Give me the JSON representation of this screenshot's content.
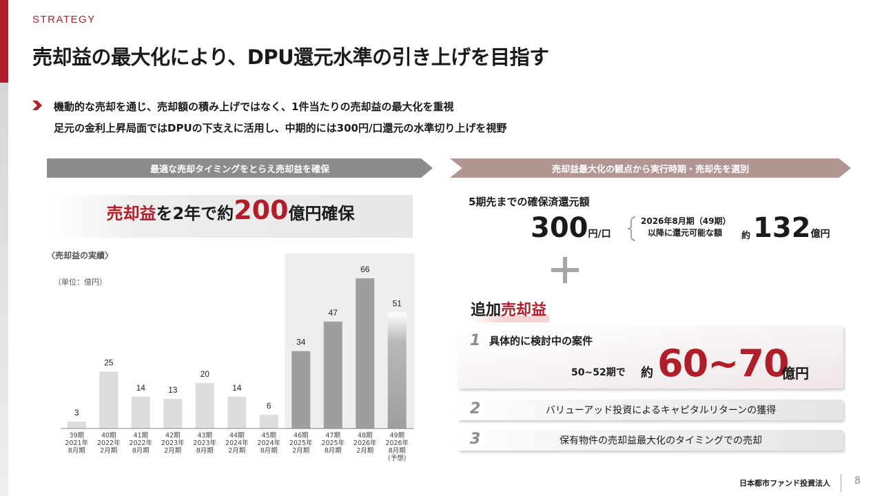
{
  "header": {
    "section": "STRATEGY",
    "title": "売却益の最大化により、DPU還元水準の引き上げを目指す"
  },
  "lead": {
    "line1": "機動的な売却を通じ、売却額の積み上げではなく、1件当たりの売却益の最大化を重視",
    "line2": "足元の金利上昇局面ではDPUの下支えに活用し、中期的には300円/口還元の水準切り上げを視野"
  },
  "left_panel": {
    "banner": "最適な売却タイミングをとらえ売却益を確保",
    "highlight": {
      "part1": "売却益",
      "part2": "を2年で約",
      "amount": "200",
      "part3": "億円確保"
    },
    "chart_caption": "〈売却益の実績〉",
    "unit": "（単位：億円）"
  },
  "chart_data": {
    "type": "bar",
    "categories": [
      [
        "39期",
        "2021年",
        "8月期"
      ],
      [
        "40期",
        "2022年",
        "2月期"
      ],
      [
        "41期",
        "2022年",
        "8月期"
      ],
      [
        "42期",
        "2023年",
        "2月期"
      ],
      [
        "43期",
        "2023年",
        "8月期"
      ],
      [
        "44期",
        "2024年",
        "2月期"
      ],
      [
        "45期",
        "2024年",
        "8月期"
      ],
      [
        "46期",
        "2025年",
        "2月期"
      ],
      [
        "47期",
        "2025年",
        "8月期"
      ],
      [
        "48期",
        "2026年",
        "2月期"
      ],
      [
        "49期",
        "2026年",
        "8月期",
        "(予想)"
      ]
    ],
    "values": [
      3,
      25,
      14,
      13,
      20,
      14,
      6,
      34,
      47,
      66,
      51
    ],
    "highlighted_from_index": 7,
    "forecast_index": 10,
    "colors": {
      "past": "#dddddd",
      "recent": "#9e9e9e",
      "highlight_band": "#eeeeee"
    },
    "ylim": [
      0,
      70
    ]
  },
  "right_panel": {
    "banner": "売却益最大化の観点から実行時期・売却先を選別",
    "secured_label": "5期先までの確保済還元額",
    "dpu_value": "300",
    "dpu_unit": "円/口",
    "brace_line1": "2026年8月期（49期）",
    "brace_line2": "以降に還元可能な額",
    "approx": "約",
    "amount_value": "132",
    "amount_unit": "億円",
    "add_prefix": "追加",
    "add_highlight": "売却益",
    "items": [
      {
        "num": "1",
        "label": "具体的に検討中の案件",
        "period": "50~52期で",
        "approx": "約",
        "range": "60~70",
        "unit": "億円"
      },
      {
        "num": "2",
        "label": "バリューアッド投資によるキャピタルリターンの獲得"
      },
      {
        "num": "3",
        "label": "保有物件の売却益最大化のタイミングでの売却"
      }
    ]
  },
  "footer": {
    "company": "日本都市ファンド投資法人",
    "page": "8"
  }
}
